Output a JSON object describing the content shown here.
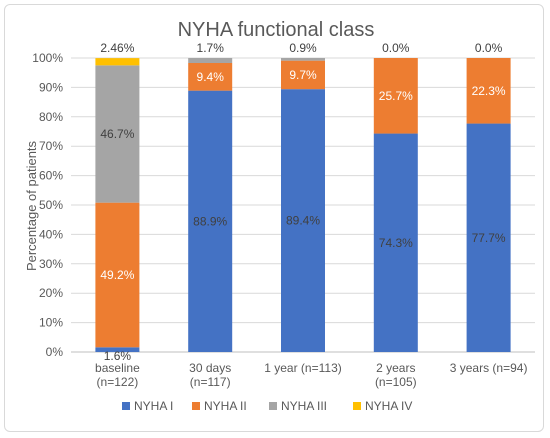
{
  "chart_data": {
    "type": "bar",
    "stacked": "percent",
    "title": "NYHA functional class",
    "ylabel": "Percentage of patients",
    "ylim": [
      0,
      100
    ],
    "yticks": [
      "0%",
      "10%",
      "20%",
      "30%",
      "40%",
      "50%",
      "60%",
      "70%",
      "80%",
      "90%",
      "100%"
    ],
    "categories": [
      [
        "baseline",
        "(n=122)"
      ],
      [
        "30 days",
        "(n=117)"
      ],
      [
        "1 year (n=113)"
      ],
      [
        "2 years",
        "(n=105)"
      ],
      [
        "3 years (n=94)"
      ]
    ],
    "series": [
      {
        "name": "NYHA I",
        "color": "#4472c4",
        "values": [
          1.6,
          88.9,
          89.4,
          74.3,
          77.7
        ],
        "labels": [
          "1.6%",
          "88.9%",
          "89.4%",
          "74.3%",
          "77.7%"
        ]
      },
      {
        "name": "NYHA II",
        "color": "#ed7d31",
        "values": [
          49.2,
          9.4,
          9.7,
          25.7,
          22.3
        ],
        "labels": [
          "49.2%",
          "9.4%",
          "9.7%",
          "25.7%",
          "22.3%"
        ]
      },
      {
        "name": "NYHA III",
        "color": "#a5a5a5",
        "values": [
          46.7,
          1.7,
          0.9,
          0.0,
          0.0
        ],
        "labels": [
          "46.7%",
          "1.7%",
          "0.9%",
          "0.0%",
          "0.0%"
        ]
      },
      {
        "name": "NYHA IV",
        "color": "#ffc000",
        "values": [
          2.46,
          0,
          0,
          0,
          0
        ],
        "labels": [
          "2.46%",
          "",
          "",
          "",
          ""
        ]
      }
    ],
    "grid": true,
    "legend": "bottom"
  }
}
